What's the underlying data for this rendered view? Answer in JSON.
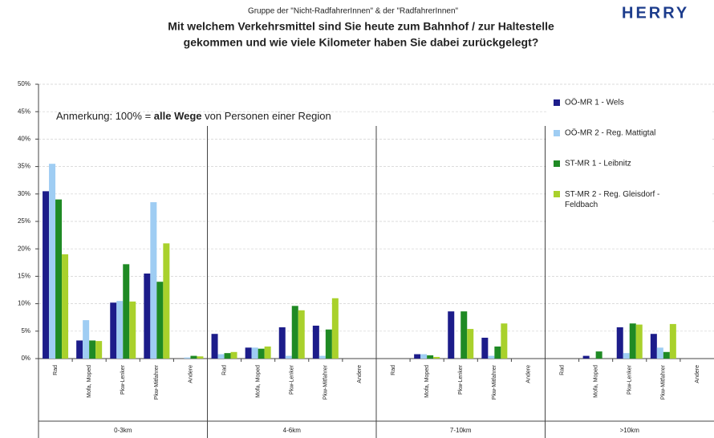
{
  "chart_data": {
    "type": "bar",
    "subtitle": "Gruppe der \"Nicht-RadfahrerInnen\" & der \"RadfahrerInnen\"",
    "title": [
      "Mit welchem Verkehrsmittel sind Sie heute zum Bahnhof / zur Haltestelle",
      "gekommen und wie viele Kilometer haben Sie dabei zurückgelegt?"
    ],
    "logo": "HERRY",
    "annotation": [
      "Anmerkung: 100% = ",
      "alle Wege",
      " von Personen einer Region"
    ],
    "groups": [
      "0-3km",
      "4-6km",
      "7-10km",
      ">10km"
    ],
    "categories": [
      "Rad",
      "Mofa, Moped",
      "Pkw-Lenker",
      "Pkw-Mitfahrer",
      "Andere",
      "Rad",
      "Mofa, Moped",
      "Pkw-Lenker",
      "Pkw-Mitfahrer",
      "Andere",
      "Rad",
      "Mofa, Moped",
      "Pkw-Lenker",
      "Pkw-Mitfahrer",
      "Andere",
      "Rad",
      "Mofa, Moped",
      "Pkw-Lenker",
      "Pkw-Mitfahrer",
      "Andere"
    ],
    "series": [
      {
        "name": "OÖ-MR 1 - Wels",
        "color": "#1c1c8a",
        "values": [
          30.5,
          3.3,
          10.2,
          15.5,
          0,
          4.5,
          2,
          5.7,
          6,
          0,
          0,
          0.8,
          8.6,
          3.8,
          0,
          0,
          0.5,
          5.7,
          4.5,
          0
        ]
      },
      {
        "name": "OÖ-MR 2 - Reg. Mattigtal",
        "color": "#9fcdf3",
        "values": [
          35.5,
          7,
          10.5,
          28.5,
          0.2,
          0.8,
          2,
          0.5,
          0.5,
          0,
          0,
          0.8,
          0,
          0.5,
          0,
          0,
          0,
          1,
          2,
          0
        ]
      },
      {
        "name": "ST-MR 1 - Leibnitz",
        "color": "#1f8a24",
        "values": [
          29,
          3.3,
          17.2,
          14,
          0.5,
          1,
          1.8,
          9.6,
          5.3,
          0,
          0,
          0.6,
          8.6,
          2.2,
          0,
          0,
          1.3,
          6.4,
          1.2,
          0
        ]
      },
      {
        "name": "ST-MR 2 - Reg. Gleisdorf - Feldbach",
        "color": "#a9d12c",
        "values": [
          19,
          3.2,
          10.4,
          21,
          0.4,
          1.2,
          2.2,
          8.8,
          11,
          0,
          0,
          0.3,
          5.4,
          6.4,
          0,
          0,
          0,
          6.2,
          6.3,
          0
        ]
      }
    ],
    "ylim": [
      0,
      50
    ],
    "yticks": [
      {
        "value": 0,
        "label": "0%"
      },
      {
        "value": 5,
        "label": "5%"
      },
      {
        "value": 10,
        "label": "10%"
      },
      {
        "value": 15,
        "label": "15%"
      },
      {
        "value": 20,
        "label": "20%"
      },
      {
        "value": 25,
        "label": "25%"
      },
      {
        "value": 30,
        "label": "30%"
      },
      {
        "value": 35,
        "label": "35%"
      },
      {
        "value": 40,
        "label": "40%"
      },
      {
        "value": 45,
        "label": "45%"
      },
      {
        "value": 50,
        "label": "50%"
      }
    ],
    "grid": true,
    "legend": "top-right"
  }
}
